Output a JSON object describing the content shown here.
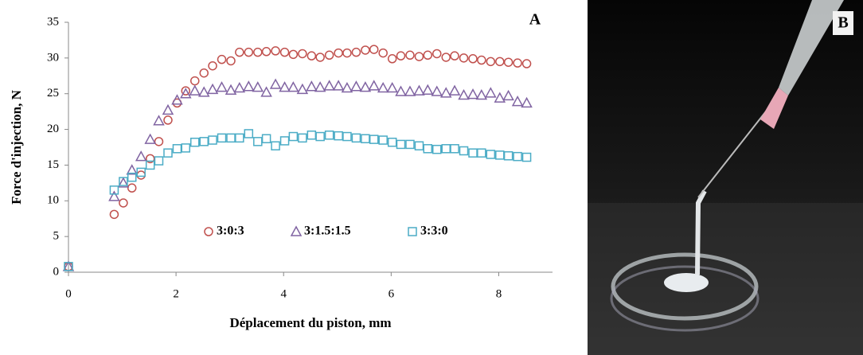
{
  "chart_data": {
    "type": "scatter",
    "panel_label": "A",
    "xlabel": "Déplacement du piston, mm",
    "ylabel": "Force d'injection, N",
    "xlim": [
      0,
      9
    ],
    "xticks": [
      0,
      2,
      4,
      6,
      8
    ],
    "ylim": [
      0,
      35
    ],
    "yticks": [
      0,
      5,
      10,
      15,
      20,
      25,
      30,
      35
    ],
    "grid": false,
    "legend": "bottom",
    "x": [
      0,
      0.85,
      1.02,
      1.18,
      1.35,
      1.52,
      1.68,
      1.85,
      2.02,
      2.18,
      2.35,
      2.52,
      2.68,
      2.85,
      3.02,
      3.18,
      3.35,
      3.52,
      3.68,
      3.85,
      4.02,
      4.18,
      4.35,
      4.52,
      4.68,
      4.85,
      5.02,
      5.18,
      5.35,
      5.52,
      5.68,
      5.85,
      6.02,
      6.18,
      6.35,
      6.52,
      6.68,
      6.85,
      7.02,
      7.18,
      7.35,
      7.52,
      7.68,
      7.85,
      8.02,
      8.18,
      8.35,
      8.52
    ],
    "series": [
      {
        "name": "3:0:3",
        "color": "#c0504d",
        "marker": "circle",
        "values": [
          0.8,
          8.1,
          9.7,
          11.8,
          13.6,
          15.9,
          18.3,
          21.3,
          23.7,
          25.4,
          26.8,
          27.9,
          28.9,
          29.8,
          29.6,
          30.8,
          30.8,
          30.8,
          30.9,
          31.0,
          30.8,
          30.5,
          30.6,
          30.3,
          30.1,
          30.4,
          30.7,
          30.7,
          30.8,
          31.1,
          31.2,
          30.7,
          29.9,
          30.3,
          30.4,
          30.2,
          30.4,
          30.6,
          30.1,
          30.3,
          30.0,
          29.9,
          29.7,
          29.5,
          29.5,
          29.4,
          29.3,
          29.2
        ]
      },
      {
        "name": "3:1.5:1.5",
        "color": "#8064a2",
        "marker": "triangle",
        "values": [
          0.8,
          10.6,
          12.5,
          14.3,
          16.2,
          18.6,
          21.2,
          22.7,
          24.1,
          25.0,
          25.4,
          25.2,
          25.6,
          25.9,
          25.5,
          25.8,
          26.0,
          25.9,
          25.2,
          26.3,
          25.9,
          25.9,
          25.6,
          26.0,
          25.9,
          26.1,
          26.1,
          25.8,
          26.0,
          25.9,
          26.1,
          25.8,
          25.8,
          25.3,
          25.3,
          25.4,
          25.5,
          25.3,
          25.1,
          25.4,
          24.8,
          24.9,
          24.8,
          25.1,
          24.4,
          24.7,
          23.9,
          23.7
        ]
      },
      {
        "name": "3:3:0",
        "color": "#4bacc6",
        "marker": "square",
        "values": [
          0.8,
          11.5,
          12.7,
          13.3,
          14.0,
          15.0,
          15.6,
          16.7,
          17.3,
          17.4,
          18.2,
          18.3,
          18.5,
          18.8,
          18.8,
          18.8,
          19.4,
          18.3,
          18.7,
          17.7,
          18.4,
          19.0,
          18.8,
          19.2,
          19.0,
          19.2,
          19.1,
          19.0,
          18.8,
          18.7,
          18.6,
          18.5,
          18.2,
          17.9,
          17.9,
          17.7,
          17.3,
          17.2,
          17.3,
          17.3,
          17.0,
          16.7,
          16.7,
          16.5,
          16.4,
          16.3,
          16.2,
          16.1
        ]
      }
    ]
  },
  "photo": {
    "label": "B"
  }
}
